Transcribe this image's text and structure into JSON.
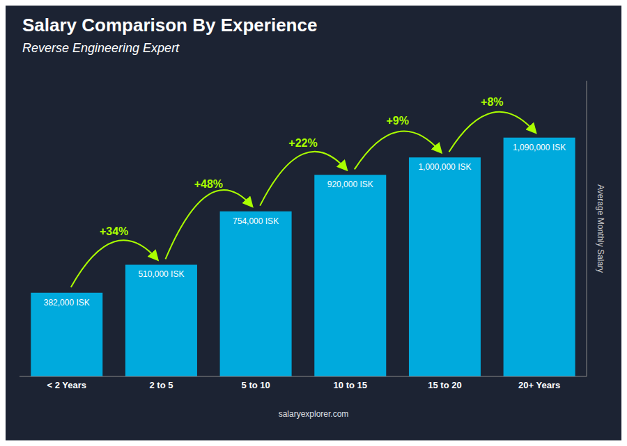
{
  "chart_data": {
    "type": "bar",
    "title": "Salary Comparison By Experience",
    "subtitle": "Reverse Engineering Expert",
    "ylabel": "Average Monthly Salary",
    "watermark": "salaryexplorer.com",
    "categories": [
      "< 2 Years",
      "2 to 5",
      "5 to 10",
      "10 to 15",
      "15 to 20",
      "20+ Years"
    ],
    "values": [
      382000,
      510000,
      754000,
      920000,
      1000000,
      1090000
    ],
    "value_labels": [
      "382,000 ISK",
      "510,000 ISK",
      "754,000 ISK",
      "920,000 ISK",
      "1,000,000 ISK",
      "1,090,000 ISK"
    ],
    "data_labels": true,
    "color": "#00aadd",
    "ylim": [
      0,
      1350000
    ],
    "tick_labels": "x",
    "grid": false,
    "annotations": [
      {
        "text": "+34%",
        "from": "< 2 Years",
        "to": "2 to 5",
        "color": "#aaff00"
      },
      {
        "text": "+48%",
        "from": "2 to 5",
        "to": "5 to 10",
        "color": "#aaff00"
      },
      {
        "text": "+22%",
        "from": "5 to 10",
        "to": "10 to 15",
        "color": "#aaff00"
      },
      {
        "text": "+9%",
        "from": "10 to 15",
        "to": "15 to 20",
        "color": "#aaff00"
      },
      {
        "text": "+8%",
        "from": "15 to 20",
        "to": "20+ Years",
        "color": "#aaff00"
      }
    ]
  }
}
